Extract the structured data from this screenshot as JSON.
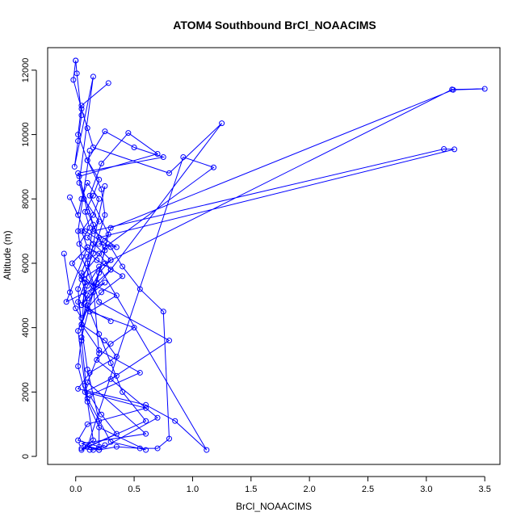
{
  "chart_data": {
    "type": "line",
    "title": "ATOM4 Southbound BrCl_NOAACIMS",
    "xlabel": "BrCl_NOAACIMS",
    "ylabel": "Altitude (m)",
    "xlim": [
      -0.24,
      3.63
    ],
    "ylim": [
      -250,
      12700
    ],
    "xticks": [
      0.0,
      0.5,
      1.0,
      1.5,
      2.0,
      2.5,
      3.0,
      3.5
    ],
    "xtick_labels": [
      "0.0",
      "0.5",
      "1.0",
      "1.5",
      "2.0",
      "2.5",
      "3.0",
      "3.5"
    ],
    "yticks": [
      0,
      2000,
      4000,
      6000,
      8000,
      10000,
      12000
    ],
    "ytick_labels": [
      "0",
      "2000",
      "4000",
      "6000",
      "8000",
      "10000",
      "12000"
    ],
    "grid": false,
    "marker": "open-circle",
    "color": "#0000ff",
    "series": [
      {
        "x": [
          0.0,
          0.01,
          0.05,
          0.02,
          -0.01,
          0.15,
          0.03,
          0.07,
          0.2,
          0.1,
          0.3,
          0.05,
          0.35,
          0.12,
          0.5,
          0.3,
          0.18,
          0.35,
          0.08,
          0.6,
          0.1,
          0.02,
          0.2,
          0.2,
          0.1,
          0.05,
          0.02,
          0.15,
          0.25,
          0.22,
          0.1,
          0.25,
          0.5,
          0.75,
          0.02,
          0.15,
          0.1,
          0.2,
          0.8,
          0.3,
          0.7,
          0.2,
          0.05,
          0.6,
          0.1,
          0.2,
          0.15,
          0.05,
          0.02,
          0.12
        ],
        "y": [
          12300,
          11900,
          10600,
          9800,
          9000,
          11800,
          8500,
          8000,
          7300,
          6800,
          6100,
          5500,
          5000,
          4500,
          4000,
          3500,
          3000,
          2500,
          2000,
          1500,
          1000,
          500,
          300,
          1100,
          2700,
          4000,
          5200,
          6300,
          7500,
          8300,
          9200,
          10100,
          9600,
          9300,
          8800,
          7200,
          6000,
          4800,
          3600,
          2400,
          1200,
          200,
          400,
          700,
          2300,
          3200,
          5300,
          6200,
          7000,
          9500
        ]
      },
      {
        "x": [
          0.0,
          -0.02,
          0.05,
          0.1,
          0.15,
          0.8,
          1.25,
          0.3,
          0.1,
          0.05,
          0.2,
          0.55,
          0.12,
          0.22,
          0.35,
          0.1,
          0.92,
          1.18,
          0.25,
          0.05,
          0.1,
          0.2,
          0.3,
          0.4,
          0.6,
          0.05,
          0.15,
          0.08,
          0.02,
          0.18,
          0.28,
          0.12,
          0.22,
          0.45,
          0.7,
          0.03,
          0.1,
          0.25,
          0.15,
          0.05,
          0.02,
          0.1,
          0.2,
          0.6,
          0.3,
          0.1,
          0.05,
          0.07,
          0.15,
          0.25
        ],
        "y": [
          12300,
          11700,
          10800,
          10200,
          9600,
          8800,
          10350,
          5800,
          4900,
          4100,
          3300,
          2600,
          1900,
          1300,
          700,
          300,
          9300,
          8980,
          6500,
          5600,
          4700,
          3800,
          2900,
          2000,
          1100,
          200,
          500,
          2200,
          3900,
          5400,
          6900,
          8100,
          9100,
          10050,
          9400,
          8700,
          7600,
          6400,
          5100,
          3700,
          2800,
          1700,
          900,
          200,
          450,
          1800,
          3600,
          5100,
          6600,
          8400
        ]
      },
      {
        "x": [
          0.28,
          0.05,
          0.02,
          0.1,
          0.2,
          0.15,
          0.08,
          0.12,
          0.03,
          0.18,
          0.4,
          0.22,
          0.1,
          0.05,
          0.25,
          0.35,
          0.12,
          0.02,
          0.6,
          0.85,
          1.12,
          0.2,
          0.1,
          0.05,
          0.3
        ],
        "y": [
          11600,
          10900,
          10000,
          9200,
          8600,
          8100,
          7600,
          7100,
          6600,
          6100,
          5600,
          5100,
          4600,
          4100,
          3600,
          3100,
          2600,
          2100,
          1600,
          1100,
          200,
          5900,
          5300,
          4700,
          4200
        ]
      },
      {
        "x": [
          -0.1,
          -0.05,
          0.0,
          0.05,
          0.02,
          0.08,
          -0.03,
          0.1,
          0.05,
          0.15,
          0.2,
          0.1,
          0.05,
          0.02,
          -0.05,
          0.08,
          0.3,
          0.4,
          0.55,
          0.75,
          0.8,
          0.7,
          0.55,
          0.35,
          0.2,
          0.1,
          0.05,
          0.15,
          0.25,
          0.12
        ],
        "y": [
          6300,
          5100,
          4600,
          4300,
          4800,
          5400,
          6000,
          6500,
          7000,
          7500,
          8000,
          8500,
          8000,
          7500,
          8050,
          7000,
          6500,
          5900,
          5200,
          4500,
          550,
          250,
          250,
          300,
          200,
          300,
          250,
          200,
          350,
          200
        ]
      },
      {
        "x": [
          0.25,
          3.22,
          3.5,
          3.23,
          0.3,
          0.25,
          0.2,
          0.35,
          0.15,
          3.15,
          3.24,
          0.2,
          0.1,
          0.05,
          0.15,
          0.3,
          0.2,
          0.1,
          -0.08,
          0.25,
          0.15,
          0.05,
          0.1,
          0.2,
          0.3
        ],
        "y": [
          6000,
          11400,
          11420,
          11390,
          7100,
          6700,
          6600,
          6500,
          7000,
          9550,
          9540,
          6800,
          6200,
          5700,
          5300,
          5800,
          6300,
          6500,
          4800,
          5400,
          5100,
          4700,
          5000,
          5700,
          6100
        ]
      }
    ]
  }
}
